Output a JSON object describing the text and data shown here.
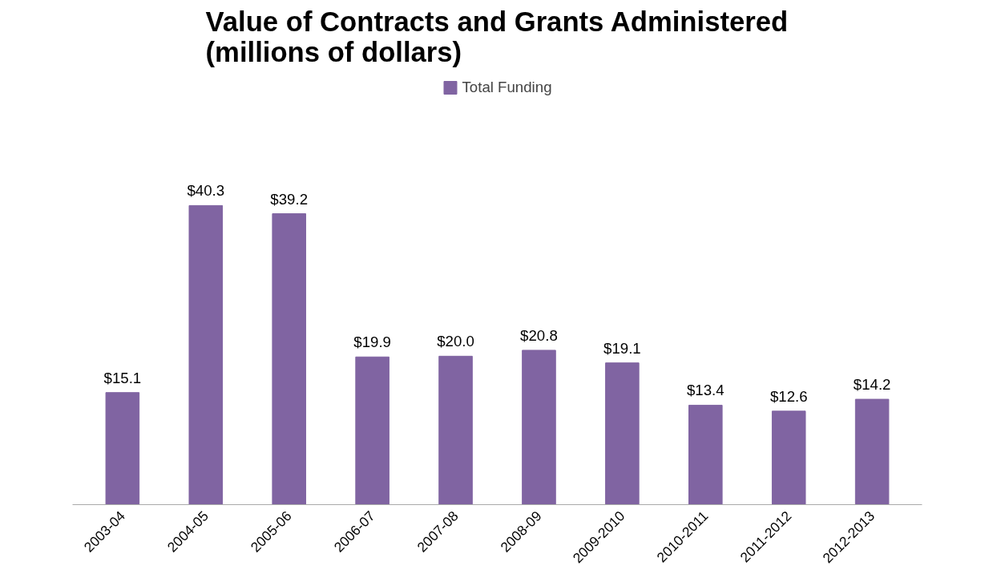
{
  "chart_data": {
    "type": "bar",
    "title": "Value of Contracts and Grants Administered (millions of dollars)",
    "categories": [
      "2003-04",
      "2004-05",
      "2005-06",
      "2006-07",
      "2007-08",
      "2008-09",
      "2009-2010",
      "2010-2011",
      "2011-2012",
      "2012-2013"
    ],
    "series": [
      {
        "name": "Total Funding",
        "color": "#8064a2",
        "values": [
          15.1,
          40.3,
          39.2,
          19.9,
          20.0,
          20.8,
          19.1,
          13.4,
          12.6,
          14.2
        ],
        "value_labels": [
          "$15.1",
          "$40.3",
          "$39.2",
          "$19.9",
          "$20.0",
          "$20.8",
          "$19.1",
          "$13.4",
          "$12.6",
          "$14.2"
        ]
      }
    ],
    "legend": "top",
    "grid": false
  }
}
